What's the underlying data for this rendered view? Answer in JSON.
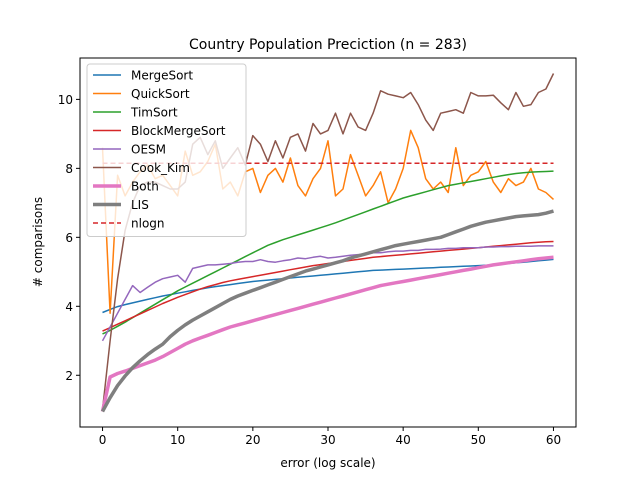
{
  "chart_data": {
    "type": "line",
    "title": "Country Population Preciction (n = 283)",
    "xlabel": "error (log scale)",
    "ylabel": "# comparisons",
    "xlim": [
      -3,
      63
    ],
    "ylim": [
      0.5,
      11.2
    ],
    "xticks": [
      0,
      10,
      20,
      30,
      40,
      50,
      60
    ],
    "yticks": [
      2,
      4,
      6,
      8,
      10
    ],
    "legend_position": "top-left",
    "grid": false,
    "x": [
      0,
      1,
      2,
      3,
      4,
      5,
      6,
      7,
      8,
      9,
      10,
      11,
      12,
      13,
      14,
      15,
      16,
      17,
      18,
      19,
      20,
      21,
      22,
      23,
      24,
      25,
      26,
      27,
      28,
      29,
      30,
      31,
      32,
      33,
      34,
      35,
      36,
      37,
      38,
      39,
      40,
      41,
      42,
      43,
      44,
      45,
      46,
      47,
      48,
      49,
      50,
      51,
      52,
      53,
      54,
      55,
      56,
      57,
      58,
      59,
      60
    ],
    "series": [
      {
        "name": "MergeSort",
        "color": "#1f77b4",
        "width": 1.5,
        "dash": "",
        "values": [
          3.82,
          3.91,
          3.99,
          4.05,
          4.1,
          4.15,
          4.2,
          4.25,
          4.3,
          4.34,
          4.38,
          4.42,
          4.46,
          4.5,
          4.54,
          4.57,
          4.6,
          4.63,
          4.66,
          4.69,
          4.72,
          4.74,
          4.76,
          4.78,
          4.8,
          4.82,
          4.84,
          4.86,
          4.88,
          4.9,
          4.92,
          4.94,
          4.96,
          4.98,
          5.0,
          5.02,
          5.04,
          5.05,
          5.06,
          5.07,
          5.08,
          5.09,
          5.1,
          5.11,
          5.12,
          5.13,
          5.14,
          5.15,
          5.16,
          5.17,
          5.18,
          5.19,
          5.2,
          5.22,
          5.24,
          5.26,
          5.28,
          5.3,
          5.32,
          5.34,
          5.36
        ]
      },
      {
        "name": "QuickSort",
        "color": "#ff7f0e",
        "width": 1.5,
        "dash": "",
        "values": [
          8.6,
          3.8,
          7.8,
          7.2,
          7.6,
          7.9,
          8.1,
          7.7,
          7.8,
          7.5,
          7.2,
          8.5,
          7.8,
          7.9,
          8.2,
          8.7,
          7.4,
          7.6,
          7.2,
          7.9,
          8.0,
          7.3,
          7.8,
          8.0,
          7.6,
          8.3,
          7.5,
          7.2,
          7.7,
          8.0,
          8.8,
          7.2,
          7.4,
          8.4,
          7.8,
          7.2,
          7.5,
          7.9,
          7.0,
          7.4,
          8.0,
          9.1,
          8.6,
          7.7,
          7.4,
          7.6,
          7.3,
          8.6,
          7.5,
          7.8,
          7.9,
          8.2,
          7.6,
          7.3,
          7.7,
          7.5,
          7.6,
          8.0,
          7.4,
          7.3,
          7.1
        ]
      },
      {
        "name": "TimSort",
        "color": "#2ca02c",
        "width": 1.5,
        "dash": "",
        "values": [
          3.2,
          3.3,
          3.42,
          3.54,
          3.67,
          3.8,
          3.93,
          4.06,
          4.19,
          4.32,
          4.45,
          4.56,
          4.67,
          4.78,
          4.89,
          5.0,
          5.11,
          5.22,
          5.33,
          5.44,
          5.55,
          5.66,
          5.77,
          5.85,
          5.93,
          6.0,
          6.07,
          6.14,
          6.21,
          6.28,
          6.35,
          6.42,
          6.5,
          6.58,
          6.66,
          6.74,
          6.82,
          6.9,
          6.98,
          7.06,
          7.14,
          7.2,
          7.26,
          7.32,
          7.38,
          7.44,
          7.5,
          7.54,
          7.58,
          7.62,
          7.66,
          7.7,
          7.74,
          7.78,
          7.82,
          7.85,
          7.87,
          7.89,
          7.9,
          7.91,
          7.92
        ]
      },
      {
        "name": "BlockMergeSort",
        "color": "#d62728",
        "width": 1.5,
        "dash": "",
        "values": [
          3.28,
          3.38,
          3.48,
          3.58,
          3.68,
          3.78,
          3.88,
          3.98,
          4.08,
          4.17,
          4.26,
          4.34,
          4.42,
          4.5,
          4.57,
          4.63,
          4.69,
          4.74,
          4.78,
          4.82,
          4.86,
          4.9,
          4.94,
          4.98,
          5.02,
          5.06,
          5.1,
          5.14,
          5.18,
          5.21,
          5.24,
          5.27,
          5.3,
          5.33,
          5.36,
          5.39,
          5.42,
          5.44,
          5.46,
          5.48,
          5.5,
          5.52,
          5.54,
          5.56,
          5.58,
          5.6,
          5.62,
          5.64,
          5.66,
          5.68,
          5.7,
          5.72,
          5.74,
          5.76,
          5.78,
          5.8,
          5.82,
          5.84,
          5.86,
          5.87,
          5.88
        ]
      },
      {
        "name": "OESM",
        "color": "#9467bd",
        "width": 1.5,
        "dash": "",
        "values": [
          3.0,
          3.4,
          3.8,
          4.2,
          4.6,
          4.4,
          4.55,
          4.7,
          4.8,
          4.85,
          4.9,
          4.7,
          5.1,
          5.15,
          5.2,
          5.2,
          5.22,
          5.24,
          5.28,
          5.3,
          5.3,
          5.35,
          5.3,
          5.28,
          5.32,
          5.35,
          5.4,
          5.38,
          5.42,
          5.45,
          5.4,
          5.42,
          5.45,
          5.48,
          5.5,
          5.52,
          5.55,
          5.55,
          5.58,
          5.6,
          5.6,
          5.62,
          5.62,
          5.65,
          5.65,
          5.66,
          5.68,
          5.68,
          5.7,
          5.7,
          5.7,
          5.72,
          5.72,
          5.73,
          5.73,
          5.74,
          5.74,
          5.74,
          5.75,
          5.75,
          5.75
        ]
      },
      {
        "name": "Cook_Kim",
        "color": "#8c564b",
        "width": 1.5,
        "dash": "",
        "values": [
          1.0,
          3.0,
          4.8,
          6.2,
          7.0,
          7.5,
          7.6,
          7.6,
          7.5,
          7.4,
          7.4,
          7.6,
          8.7,
          8.9,
          8.4,
          8.8,
          8.0,
          8.3,
          8.6,
          8.1,
          8.95,
          8.7,
          8.2,
          8.8,
          8.3,
          8.9,
          9.0,
          8.5,
          9.3,
          9.0,
          9.1,
          9.6,
          9.0,
          9.6,
          9.2,
          9.1,
          9.6,
          10.25,
          10.15,
          10.1,
          10.05,
          10.2,
          9.85,
          9.4,
          9.1,
          9.6,
          9.65,
          9.7,
          9.6,
          10.2,
          10.1,
          10.1,
          10.12,
          9.9,
          9.7,
          10.2,
          9.8,
          9.85,
          10.2,
          10.3,
          10.75
        ]
      },
      {
        "name": "Both",
        "color": "#e377c2",
        "width": 3.5,
        "dash": "",
        "values": [
          0.95,
          1.95,
          2.05,
          2.12,
          2.2,
          2.28,
          2.36,
          2.44,
          2.54,
          2.66,
          2.78,
          2.9,
          3.0,
          3.08,
          3.16,
          3.24,
          3.32,
          3.4,
          3.46,
          3.52,
          3.58,
          3.64,
          3.7,
          3.76,
          3.82,
          3.88,
          3.94,
          4.0,
          4.06,
          4.12,
          4.18,
          4.24,
          4.3,
          4.36,
          4.42,
          4.48,
          4.54,
          4.6,
          4.64,
          4.68,
          4.72,
          4.76,
          4.8,
          4.84,
          4.88,
          4.92,
          4.96,
          5.0,
          5.04,
          5.08,
          5.12,
          5.16,
          5.2,
          5.23,
          5.26,
          5.29,
          5.32,
          5.35,
          5.38,
          5.4,
          5.42
        ]
      },
      {
        "name": "LIS",
        "color": "#7f7f7f",
        "width": 3.5,
        "dash": "",
        "values": [
          0.95,
          1.35,
          1.7,
          1.98,
          2.22,
          2.42,
          2.6,
          2.76,
          2.9,
          3.12,
          3.3,
          3.46,
          3.6,
          3.72,
          3.84,
          3.96,
          4.08,
          4.2,
          4.3,
          4.38,
          4.46,
          4.54,
          4.62,
          4.7,
          4.78,
          4.86,
          4.94,
          5.02,
          5.08,
          5.14,
          5.2,
          5.26,
          5.32,
          5.4,
          5.46,
          5.52,
          5.58,
          5.64,
          5.7,
          5.76,
          5.8,
          5.84,
          5.88,
          5.92,
          5.96,
          6.0,
          6.08,
          6.16,
          6.24,
          6.32,
          6.38,
          6.44,
          6.48,
          6.52,
          6.56,
          6.6,
          6.62,
          6.64,
          6.66,
          6.7,
          6.76
        ]
      },
      {
        "name": "nlogn",
        "color": "#d62728",
        "width": 1.5,
        "dash": "5,3",
        "values": [
          8.15,
          8.15,
          8.15,
          8.15,
          8.15,
          8.15,
          8.15,
          8.15,
          8.15,
          8.15,
          8.15,
          8.15,
          8.15,
          8.15,
          8.15,
          8.15,
          8.15,
          8.15,
          8.15,
          8.15,
          8.15,
          8.15,
          8.15,
          8.15,
          8.15,
          8.15,
          8.15,
          8.15,
          8.15,
          8.15,
          8.15,
          8.15,
          8.15,
          8.15,
          8.15,
          8.15,
          8.15,
          8.15,
          8.15,
          8.15,
          8.15,
          8.15,
          8.15,
          8.15,
          8.15,
          8.15,
          8.15,
          8.15,
          8.15,
          8.15,
          8.15,
          8.15,
          8.15,
          8.15,
          8.15,
          8.15,
          8.15,
          8.15,
          8.15,
          8.15,
          8.15
        ]
      }
    ]
  }
}
